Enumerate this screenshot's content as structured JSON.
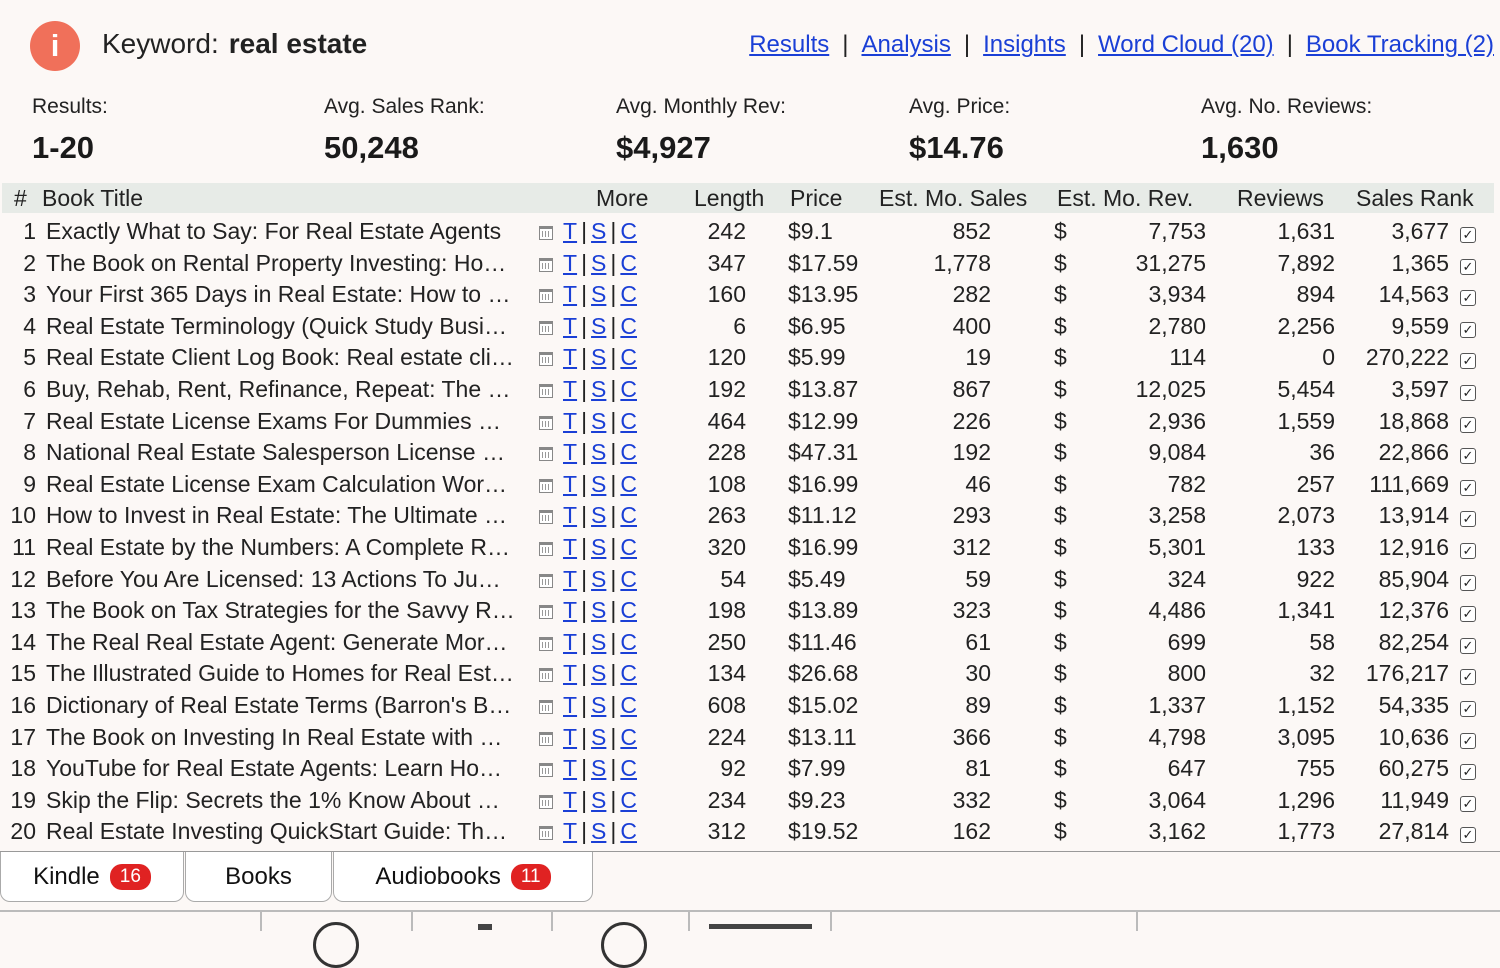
{
  "header": {
    "info_glyph": "i",
    "keyword_label": "Keyword:",
    "keyword_value": "real estate",
    "links": [
      "Results",
      "Analysis",
      "Insights",
      "Word Cloud (20)",
      "Book Tracking (2)"
    ],
    "separator": "|"
  },
  "stats": [
    {
      "label": "Results:",
      "value": "1-20"
    },
    {
      "label": "Avg. Sales Rank:",
      "value": "50,248"
    },
    {
      "label": "Avg. Monthly Rev:",
      "value": "$4,927"
    },
    {
      "label": "Avg. Price:",
      "value": "$14.76"
    },
    {
      "label": "Avg. No. Reviews:",
      "value": "1,630"
    }
  ],
  "table": {
    "headers": {
      "num": "#",
      "title": "Book Title",
      "more": "More",
      "length": "Length",
      "price": "Price",
      "sales": "Est. Mo. Sales",
      "rev": "Est. Mo. Rev.",
      "reviews": "Reviews",
      "rank": "Sales Rank"
    },
    "more_links": [
      "T",
      "S",
      "C"
    ],
    "currency_symbol": "$",
    "check_glyph": "✓",
    "rows": [
      {
        "num": "1",
        "title": "Exactly What to Say: For Real Estate Agents",
        "length": "242",
        "price": "$9.1",
        "sales": "852",
        "rev": "7,753",
        "reviews": "1,631",
        "rank": "3,677"
      },
      {
        "num": "2",
        "title": "The Book on Rental Property Investing: Ho…",
        "length": "347",
        "price": "$17.59",
        "sales": "1,778",
        "rev": "31,275",
        "reviews": "7,892",
        "rank": "1,365"
      },
      {
        "num": "3",
        "title": "Your First 365 Days in Real Estate: How to …",
        "length": "160",
        "price": "$13.95",
        "sales": "282",
        "rev": "3,934",
        "reviews": "894",
        "rank": "14,563"
      },
      {
        "num": "4",
        "title": "Real Estate Terminology (Quick Study Busi…",
        "length": "6",
        "price": "$6.95",
        "sales": "400",
        "rev": "2,780",
        "reviews": "2,256",
        "rank": "9,559"
      },
      {
        "num": "5",
        "title": "Real Estate Client Log Book: Real estate cli…",
        "length": "120",
        "price": "$5.99",
        "sales": "19",
        "rev": "114",
        "reviews": "0",
        "rank": "270,222"
      },
      {
        "num": "6",
        "title": "Buy, Rehab, Rent, Refinance, Repeat: The …",
        "length": "192",
        "price": "$13.87",
        "sales": "867",
        "rev": "12,025",
        "reviews": "5,454",
        "rank": "3,597"
      },
      {
        "num": "7",
        "title": "Real Estate License Exams For Dummies …",
        "length": "464",
        "price": "$12.99",
        "sales": "226",
        "rev": "2,936",
        "reviews": "1,559",
        "rank": "18,868"
      },
      {
        "num": "8",
        "title": "National Real Estate Salesperson License …",
        "length": "228",
        "price": "$47.31",
        "sales": "192",
        "rev": "9,084",
        "reviews": "36",
        "rank": "22,866"
      },
      {
        "num": "9",
        "title": "Real Estate License Exam Calculation Wor…",
        "length": "108",
        "price": "$16.99",
        "sales": "46",
        "rev": "782",
        "reviews": "257",
        "rank": "111,669"
      },
      {
        "num": "10",
        "title": "How to Invest in Real Estate: The Ultimate …",
        "length": "263",
        "price": "$11.12",
        "sales": "293",
        "rev": "3,258",
        "reviews": "2,073",
        "rank": "13,914"
      },
      {
        "num": "11",
        "title": "Real Estate by the Numbers: A Complete R…",
        "length": "320",
        "price": "$16.99",
        "sales": "312",
        "rev": "5,301",
        "reviews": "133",
        "rank": "12,916"
      },
      {
        "num": "12",
        "title": "Before You Are Licensed: 13 Actions To Ju…",
        "length": "54",
        "price": "$5.49",
        "sales": "59",
        "rev": "324",
        "reviews": "922",
        "rank": "85,904"
      },
      {
        "num": "13",
        "title": "The Book on Tax Strategies for the Savvy R…",
        "length": "198",
        "price": "$13.89",
        "sales": "323",
        "rev": "4,486",
        "reviews": "1,341",
        "rank": "12,376"
      },
      {
        "num": "14",
        "title": "The Real Real Estate Agent: Generate Mor…",
        "length": "250",
        "price": "$11.46",
        "sales": "61",
        "rev": "699",
        "reviews": "58",
        "rank": "82,254"
      },
      {
        "num": "15",
        "title": "The Illustrated Guide to Homes for Real Est…",
        "length": "134",
        "price": "$26.68",
        "sales": "30",
        "rev": "800",
        "reviews": "32",
        "rank": "176,217"
      },
      {
        "num": "16",
        "title": "Dictionary of Real Estate Terms (Barron's B…",
        "length": "608",
        "price": "$15.02",
        "sales": "89",
        "rev": "1,337",
        "reviews": "1,152",
        "rank": "54,335"
      },
      {
        "num": "17",
        "title": "The Book on Investing In Real Estate with …",
        "length": "224",
        "price": "$13.11",
        "sales": "366",
        "rev": "4,798",
        "reviews": "3,095",
        "rank": "10,636"
      },
      {
        "num": "18",
        "title": "YouTube for Real Estate Agents: Learn Ho…",
        "length": "92",
        "price": "$7.99",
        "sales": "81",
        "rev": "647",
        "reviews": "755",
        "rank": "60,275"
      },
      {
        "num": "19",
        "title": "Skip the Flip: Secrets the 1% Know About …",
        "length": "234",
        "price": "$9.23",
        "sales": "332",
        "rev": "3,064",
        "reviews": "1,296",
        "rank": "11,949"
      },
      {
        "num": "20",
        "title": "Real Estate Investing QuickStart Guide: Th…",
        "length": "312",
        "price": "$19.52",
        "sales": "162",
        "rev": "3,162",
        "reviews": "1,773",
        "rank": "27,814"
      }
    ]
  },
  "tabs": [
    {
      "label": "Kindle",
      "badge": "16"
    },
    {
      "label": "Books",
      "badge": ""
    },
    {
      "label": "Audiobooks",
      "badge": "11"
    }
  ],
  "colors": {
    "link": "#1a3fd6",
    "badge": "#e02222",
    "info_icon": "#f0705a",
    "header_row": "#e7ebe7",
    "background": "#fcf8f6"
  }
}
